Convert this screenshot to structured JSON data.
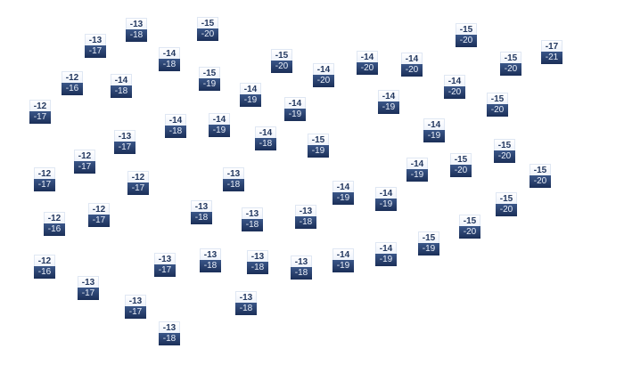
{
  "labels": [
    {
      "hi": "-13",
      "lo": "-18"
    },
    {
      "hi": "-15",
      "lo": "-20"
    },
    {
      "hi": "-13",
      "lo": "-17"
    },
    {
      "hi": "-14",
      "lo": "-18"
    },
    {
      "hi": "-15",
      "lo": "-20"
    },
    {
      "hi": "-12",
      "lo": "-16"
    },
    {
      "hi": "-14",
      "lo": "-18"
    },
    {
      "hi": "-15",
      "lo": "-19"
    },
    {
      "hi": "-14",
      "lo": "-19"
    },
    {
      "hi": "-14",
      "lo": "-20"
    },
    {
      "hi": "-14",
      "lo": "-20"
    },
    {
      "hi": "-14",
      "lo": "-20"
    },
    {
      "hi": "-15",
      "lo": "-20"
    },
    {
      "hi": "-15",
      "lo": "-20"
    },
    {
      "hi": "-17",
      "lo": "-21"
    },
    {
      "hi": "-14",
      "lo": "-20"
    },
    {
      "hi": "-14",
      "lo": "-19"
    },
    {
      "hi": "-15",
      "lo": "-20"
    },
    {
      "hi": "-14",
      "lo": "-19"
    },
    {
      "hi": "-12",
      "lo": "-17"
    },
    {
      "hi": "-14",
      "lo": "-18"
    },
    {
      "hi": "-14",
      "lo": "-19"
    },
    {
      "hi": "-14",
      "lo": "-18"
    },
    {
      "hi": "-14",
      "lo": "-19"
    },
    {
      "hi": "-13",
      "lo": "-17"
    },
    {
      "hi": "-15",
      "lo": "-19"
    },
    {
      "hi": "-15",
      "lo": "-20"
    },
    {
      "hi": "-12",
      "lo": "-17"
    },
    {
      "hi": "-14",
      "lo": "-19"
    },
    {
      "hi": "-15",
      "lo": "-20"
    },
    {
      "hi": "-15",
      "lo": "-20"
    },
    {
      "hi": "-12",
      "lo": "-17"
    },
    {
      "hi": "-12",
      "lo": "-17"
    },
    {
      "hi": "-13",
      "lo": "-18"
    },
    {
      "hi": "-14",
      "lo": "-19"
    },
    {
      "hi": "-14",
      "lo": "-19"
    },
    {
      "hi": "-15",
      "lo": "-20"
    },
    {
      "hi": "-13",
      "lo": "-18"
    },
    {
      "hi": "-13",
      "lo": "-18"
    },
    {
      "hi": "-13",
      "lo": "-18"
    },
    {
      "hi": "-12",
      "lo": "-17"
    },
    {
      "hi": "-12",
      "lo": "-16"
    },
    {
      "hi": "-15",
      "lo": "-20"
    },
    {
      "hi": "-15",
      "lo": "-19"
    },
    {
      "hi": "-14",
      "lo": "-19"
    },
    {
      "hi": "-14",
      "lo": "-19"
    },
    {
      "hi": "-13",
      "lo": "-18"
    },
    {
      "hi": "-13",
      "lo": "-18"
    },
    {
      "hi": "-13",
      "lo": "-18"
    },
    {
      "hi": "-13",
      "lo": "-17"
    },
    {
      "hi": "-12",
      "lo": "-16"
    },
    {
      "hi": "-13",
      "lo": "-17"
    },
    {
      "hi": "-13",
      "lo": "-17"
    },
    {
      "hi": "-13",
      "lo": "-18"
    },
    {
      "hi": "-13",
      "lo": "-18"
    }
  ]
}
